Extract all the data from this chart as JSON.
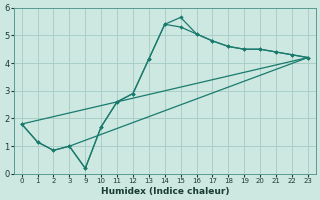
{
  "xlabel": "Humidex (Indice chaleur)",
  "bg_color": "#cce8e0",
  "grid_color": "#aacfc8",
  "line_color": "#1a7a6e",
  "xlabels": [
    "0",
    "1",
    "2",
    "3",
    "9",
    "10",
    "11",
    "12",
    "13",
    "14",
    "15",
    "16",
    "17",
    "18",
    "19",
    "20",
    "21",
    "22",
    "23"
  ],
  "line1_y": [
    1.8,
    1.15,
    0.85,
    1.0,
    0.2,
    1.7,
    2.6,
    2.9,
    4.15,
    5.4,
    5.3,
    5.05,
    4.8,
    4.6,
    4.5,
    4.5,
    4.4,
    4.3,
    4.2
  ],
  "line2_y": [
    1.8,
    1.15,
    0.85,
    1.0,
    0.2,
    1.7,
    2.6,
    2.9,
    4.15,
    5.4,
    5.65,
    5.05,
    4.8,
    4.6,
    4.5,
    4.5,
    4.4,
    4.3,
    4.2
  ],
  "trend1_xi": [
    0,
    18
  ],
  "trend1_y": [
    1.8,
    4.2
  ],
  "trend2_xi": [
    3,
    18
  ],
  "trend2_y": [
    1.0,
    4.2
  ],
  "ylim": [
    0,
    6
  ],
  "yticks": [
    0,
    1,
    2,
    3,
    4,
    5,
    6
  ]
}
